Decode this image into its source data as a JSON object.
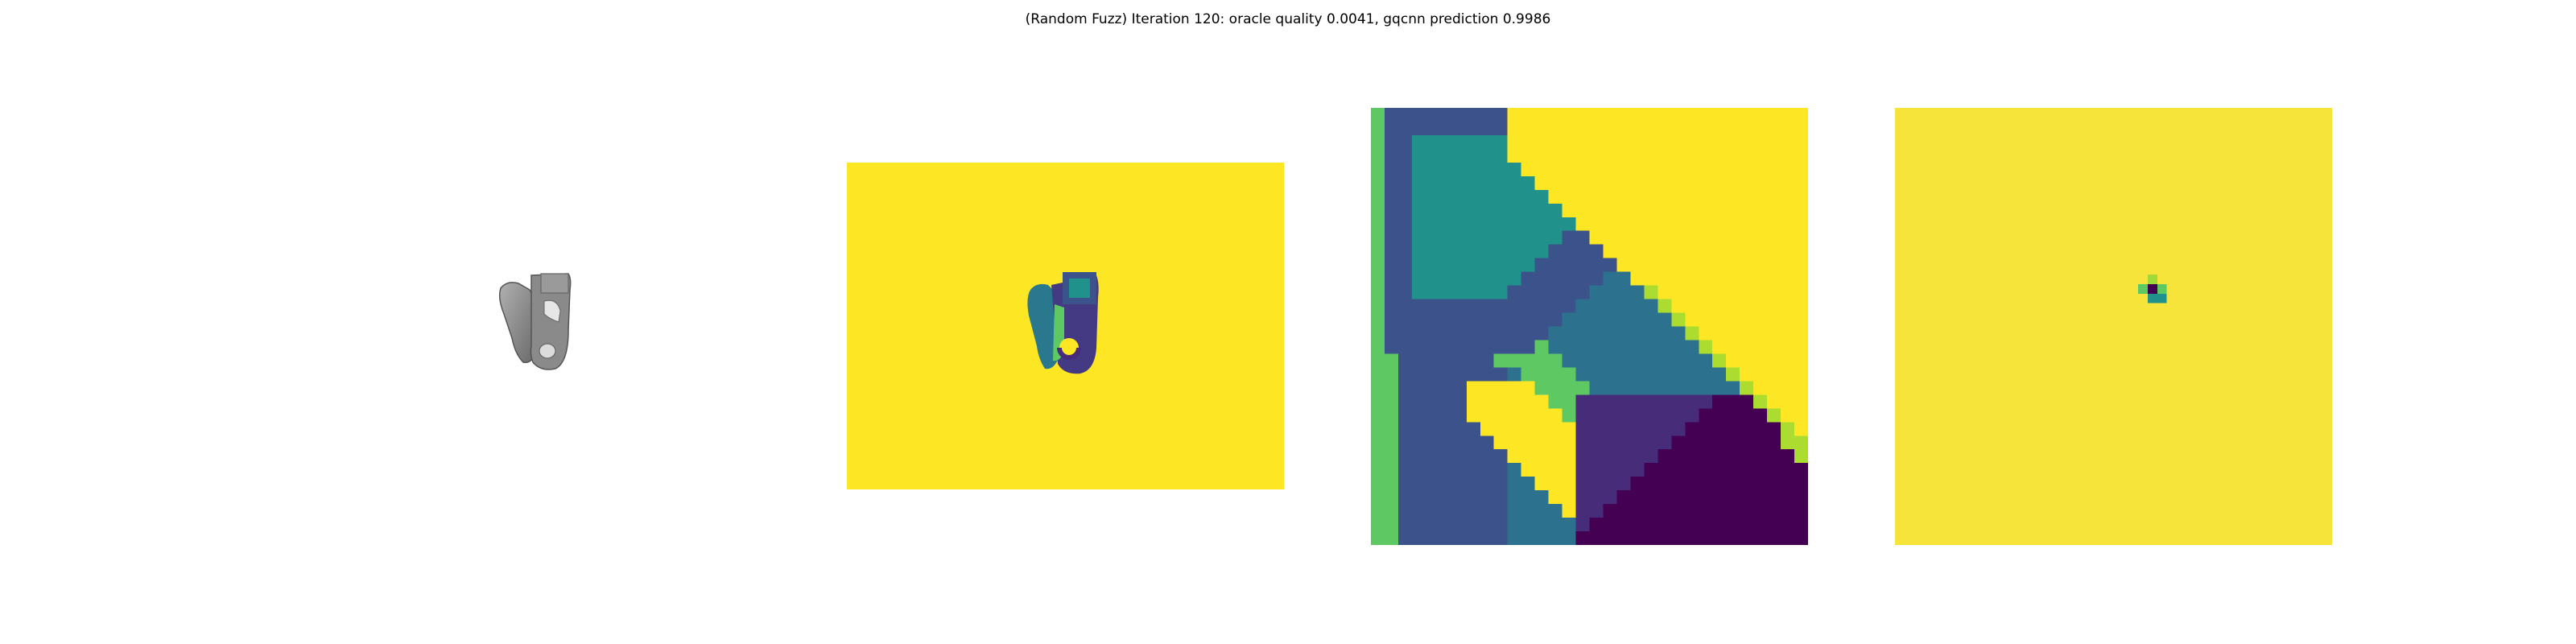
{
  "title": "(Random Fuzz) Iteration 120: oracle quality 0.0041, gqcnn prediction 0.9986",
  "chart_data": {
    "type": "heatmap",
    "title": "(Random Fuzz) Iteration 120: oracle quality 0.0041, gqcnn prediction 0.9986",
    "iteration": 120,
    "oracle_quality": 0.0041,
    "gqcnn_prediction": 0.9986,
    "panels": [
      {
        "kind": "rendered-object",
        "colors": {
          "object": "#8a8a8a",
          "shadow": "#5e5e5e"
        }
      },
      {
        "kind": "depth-image",
        "colormap": "viridis",
        "background": "#fde725"
      },
      {
        "kind": "depth-crop",
        "colormap": "viridis"
      },
      {
        "kind": "gradient-map",
        "colormap": "viridis",
        "background": "#f6e43a"
      }
    ],
    "colors": {
      "yellow": "#fde725",
      "green": "#35b779",
      "teal": "#21918c",
      "blue": "#3b528b",
      "purple": "#472c7a",
      "dark": "#440154"
    }
  }
}
